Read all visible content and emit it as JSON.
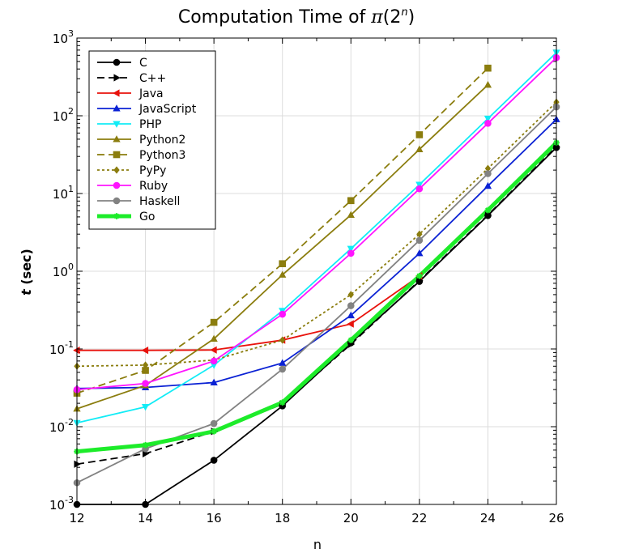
{
  "chart_data": {
    "type": "line",
    "title": "Computation Time of π(2ⁿ)",
    "title_main": "Computation Time of ",
    "title_pi": "π",
    "title_arg_open": "(2",
    "title_arg_exp": "n",
    "title_arg_close": ")",
    "xlabel": "n",
    "ylabel_var": "t",
    "ylabel_unit": "(sec)",
    "xlim": [
      12,
      26
    ],
    "ylim": [
      0.001,
      1000
    ],
    "yscale": "log",
    "grid": true,
    "legend_position": "top-left",
    "x_ticks": [
      "12",
      "14",
      "16",
      "18",
      "20",
      "22",
      "24",
      "26"
    ],
    "y_ticks": [
      {
        "base": "10",
        "exp": "-3"
      },
      {
        "base": "10",
        "exp": "-2"
      },
      {
        "base": "10",
        "exp": "-1"
      },
      {
        "base": "10",
        "exp": "0"
      },
      {
        "base": "10",
        "exp": "1"
      },
      {
        "base": "10",
        "exp": "2"
      },
      {
        "base": "10",
        "exp": "3"
      }
    ],
    "series": [
      {
        "name": "C",
        "color": "#000000",
        "dash": "solid",
        "marker": "circle",
        "x": [
          12,
          14,
          16,
          18,
          20,
          22,
          24,
          26
        ],
        "y": [
          0.001,
          0.001,
          0.0037,
          0.0185,
          0.12,
          0.74,
          5.2,
          39
        ]
      },
      {
        "name": "C++",
        "color": "#000000",
        "dash": "dashed",
        "marker": "triangle-right",
        "x": [
          12,
          14,
          16,
          18,
          20,
          22,
          24,
          26
        ],
        "y": [
          0.0033,
          0.0045,
          0.0087,
          0.0195,
          0.115,
          0.76,
          5.3,
          40
        ]
      },
      {
        "name": "Java",
        "color": "#e8120c",
        "dash": "solid",
        "marker": "triangle-left",
        "x": [
          12,
          14,
          16,
          18,
          20,
          22
        ],
        "y": [
          0.096,
          0.096,
          0.097,
          0.13,
          0.21,
          0.87
        ]
      },
      {
        "name": "JavaScript",
        "color": "#0b22d4",
        "dash": "solid",
        "marker": "triangle-up",
        "x": [
          12,
          14,
          16,
          18,
          20,
          22,
          24,
          26
        ],
        "y": [
          0.031,
          0.032,
          0.037,
          0.066,
          0.27,
          1.7,
          12.5,
          90
        ]
      },
      {
        "name": "PHP",
        "color": "#12ecf6",
        "dash": "solid",
        "marker": "triangle-down",
        "x": [
          12,
          14,
          16,
          18,
          20,
          22,
          24,
          26
        ],
        "y": [
          0.0112,
          0.018,
          0.062,
          0.31,
          1.95,
          13,
          92,
          650
        ]
      },
      {
        "name": "Python2",
        "color": "#8b7d0e",
        "dash": "solid",
        "marker": "triangle-up",
        "x": [
          12,
          14,
          16,
          18,
          20,
          22,
          24
        ],
        "y": [
          0.017,
          0.034,
          0.135,
          0.9,
          5.3,
          37,
          250
        ]
      },
      {
        "name": "Python3",
        "color": "#8b7d0e",
        "dash": "dashed",
        "marker": "square",
        "x": [
          12,
          14,
          16,
          18,
          20,
          22,
          24
        ],
        "y": [
          0.027,
          0.053,
          0.22,
          1.25,
          8.1,
          57,
          410
        ]
      },
      {
        "name": "PyPy",
        "color": "#8b7d0e",
        "dash": "dotted",
        "marker": "diamond",
        "x": [
          12,
          14,
          16,
          18,
          20,
          22,
          24,
          26
        ],
        "y": [
          0.06,
          0.062,
          0.072,
          0.13,
          0.5,
          3.0,
          21,
          150
        ]
      },
      {
        "name": "Ruby",
        "color": "#ff14ff",
        "dash": "solid",
        "marker": "circle",
        "x": [
          12,
          14,
          16,
          18,
          20,
          22,
          24,
          26
        ],
        "y": [
          0.03,
          0.036,
          0.07,
          0.28,
          1.7,
          11.5,
          80,
          560
        ]
      },
      {
        "name": "Haskell",
        "color": "#828282",
        "dash": "solid",
        "marker": "circle",
        "x": [
          12,
          14,
          16,
          18,
          20,
          22,
          24,
          26
        ],
        "y": [
          0.0019,
          0.0052,
          0.011,
          0.055,
          0.36,
          2.5,
          18,
          130
        ]
      },
      {
        "name": "Go",
        "color": "#1dec2a",
        "dash": "solid-thick",
        "marker": "star",
        "x": [
          12,
          14,
          16,
          18,
          20,
          22,
          24,
          26
        ],
        "y": [
          0.0048,
          0.0058,
          0.0087,
          0.0205,
          0.13,
          0.87,
          6.1,
          45
        ]
      }
    ]
  }
}
